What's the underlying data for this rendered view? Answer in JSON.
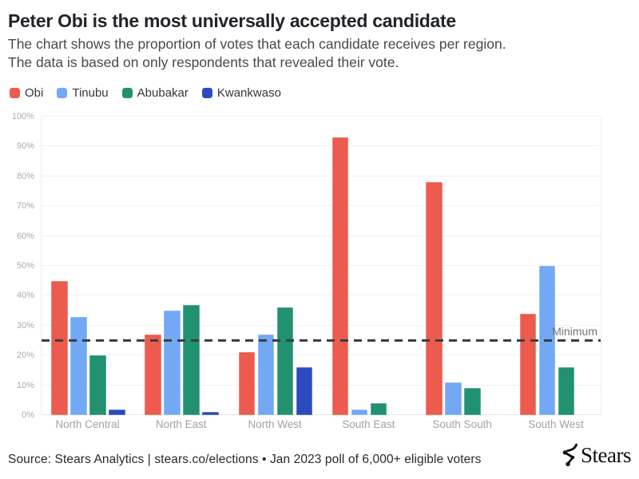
{
  "header": {
    "title": "Peter Obi is the most universally accepted candidate",
    "subtitle_line1": "The chart shows the proportion of votes that each candidate receives per region.",
    "subtitle_line2": "The data is based on only respondents that revealed their vote."
  },
  "chart_data": {
    "type": "bar",
    "title": "Peter Obi is the most universally accepted candidate",
    "categories": [
      "North Central",
      "North East",
      "North West",
      "South East",
      "South South",
      "South West"
    ],
    "series": [
      {
        "name": "Obi",
        "color": "#EC5B4D",
        "values": [
          45,
          27,
          21,
          93,
          78,
          34
        ]
      },
      {
        "name": "Tinubu",
        "color": "#72A8F4",
        "values": [
          33,
          35,
          27,
          2,
          11,
          50
        ]
      },
      {
        "name": "Abubakar",
        "color": "#21916F",
        "values": [
          20,
          37,
          36,
          4,
          9,
          16
        ]
      },
      {
        "name": "Kwankwaso",
        "color": "#2B4ABD",
        "values": [
          2,
          1,
          16,
          0,
          0,
          0
        ]
      }
    ],
    "xlabel": "",
    "ylabel": "",
    "ylim": [
      0,
      100
    ],
    "ytick_values": [
      0,
      10,
      20,
      30,
      40,
      50,
      60,
      70,
      80,
      90,
      100
    ],
    "ytick_labels": [
      "0%",
      "10%",
      "20%",
      "30%",
      "40%",
      "50%",
      "60%",
      "70%",
      "80%",
      "90%",
      "100%"
    ],
    "grid": "horizontal",
    "legend_position": "top-left",
    "reference_line": {
      "value": 25,
      "label": "Minimum",
      "style": "dashed",
      "color": "#3A3E44"
    }
  },
  "footer": {
    "source_text": "Source: Stears Analytics | stears.co/elections • Jan 2023 poll of 6,000+ eligible voters",
    "logo_text": "Stears"
  }
}
